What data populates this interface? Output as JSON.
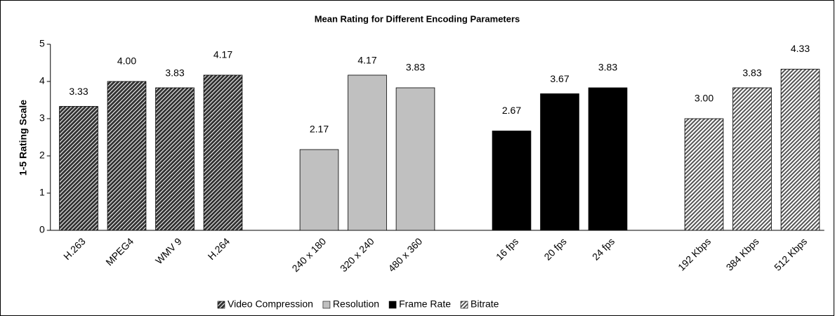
{
  "chart_data": {
    "type": "bar",
    "title": "Mean Rating for Different Encoding Parameters",
    "y_label": "1-5 Rating Scale",
    "categories": [
      "H.263",
      "MPEG4",
      "WMV 9",
      "H.264",
      null,
      "240 x 180",
      "320 x 240",
      "480 x 360",
      null,
      "16 fps",
      "20 fps",
      "24 fps",
      null,
      "192 Kbps",
      "384 Kbps",
      "512 Kbps"
    ],
    "series": [
      {
        "name": "Video Compression",
        "color": "#333333",
        "pattern": "diagonal",
        "values": [
          3.33,
          4.0,
          3.83,
          4.17,
          null,
          null,
          null,
          null,
          null,
          null,
          null,
          null,
          null,
          null,
          null,
          null
        ],
        "value_labels": [
          "3.33",
          "4.00",
          "3.83",
          "4.17",
          null,
          null,
          null,
          null,
          null,
          null,
          null,
          null,
          null,
          null,
          null,
          null
        ]
      },
      {
        "name": "Resolution",
        "color": "#c0c0c0",
        "values": [
          null,
          null,
          null,
          null,
          null,
          2.17,
          4.17,
          3.83,
          null,
          null,
          null,
          null,
          null,
          null,
          null,
          null
        ],
        "value_labels": [
          null,
          null,
          null,
          null,
          null,
          "2.17",
          "4.17",
          "3.83",
          null,
          null,
          null,
          null,
          null,
          null,
          null,
          null
        ]
      },
      {
        "name": "Frame Rate",
        "color": "#000000",
        "values": [
          null,
          null,
          null,
          null,
          null,
          null,
          null,
          null,
          null,
          2.67,
          3.67,
          3.83,
          null,
          null,
          null,
          null
        ],
        "value_labels": [
          null,
          null,
          null,
          null,
          null,
          null,
          null,
          null,
          null,
          "2.67",
          "3.67",
          "3.83",
          null,
          null,
          null,
          null
        ]
      },
      {
        "name": "Bitrate",
        "color": "#d8d8d8",
        "pattern": "diagonal",
        "values": [
          null,
          null,
          null,
          null,
          null,
          null,
          null,
          null,
          null,
          null,
          null,
          null,
          null,
          3.0,
          3.83,
          4.33
        ],
        "value_labels": [
          null,
          null,
          null,
          null,
          null,
          null,
          null,
          null,
          null,
          null,
          null,
          null,
          null,
          "3.00",
          "3.83",
          "4.33"
        ]
      }
    ],
    "ylim": [
      0,
      5
    ],
    "yticks": [
      0,
      1,
      2,
      3,
      4,
      5
    ],
    "legend": "bottom"
  }
}
